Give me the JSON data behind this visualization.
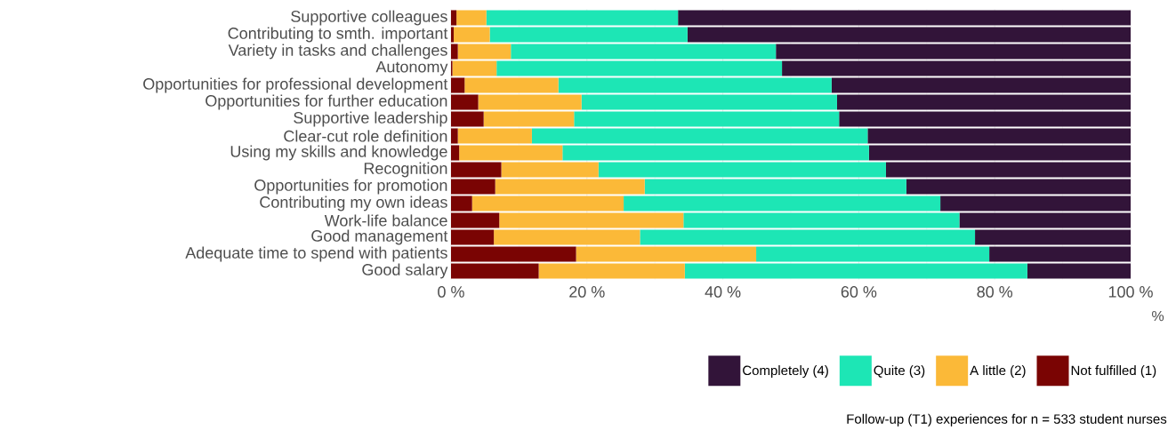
{
  "chart_data": {
    "type": "bar",
    "orientation": "horizontal",
    "stacked": true,
    "categories": [
      "Supportive colleagues",
      "Contributing to smth. important",
      "Variety in tasks and challenges",
      "Autonomy",
      "Opportunities for professional development",
      "Opportunities for further education",
      "Supportive leadership",
      "Clear-cut role definition",
      "Using my skills and knowledge",
      "Recognition",
      "Opportunities for promotion",
      "Contributing my own ideas",
      "Work-life balance",
      "Good management",
      "Adequate time to spend with patients",
      "Good salary"
    ],
    "series": [
      {
        "name": "Not fulfilled (1)",
        "color": "#7a0403",
        "values": [
          0.8,
          0.4,
          1.0,
          0.2,
          2.0,
          4.0,
          4.8,
          1.0,
          1.2,
          7.4,
          6.5,
          3.1,
          7.1,
          6.3,
          18.4,
          12.9
        ]
      },
      {
        "name": "A little (2)",
        "color": "#fbb938",
        "values": [
          4.4,
          5.3,
          7.8,
          6.5,
          13.8,
          15.2,
          13.3,
          10.9,
          15.2,
          14.3,
          22.0,
          22.3,
          27.1,
          21.5,
          26.5,
          21.5
        ]
      },
      {
        "name": "Quite (3)",
        "color": "#1de6b5",
        "values": [
          28.2,
          29.1,
          39.0,
          42.0,
          40.2,
          37.6,
          39.0,
          49.4,
          45.1,
          42.3,
          38.5,
          46.6,
          40.6,
          49.3,
          34.3,
          50.4
        ]
      },
      {
        "name": "Completely (4)",
        "color": "#321439",
        "values": [
          66.6,
          65.2,
          52.2,
          51.3,
          44.0,
          43.2,
          42.9,
          38.7,
          38.5,
          36.0,
          33.0,
          28.0,
          25.2,
          22.9,
          20.8,
          15.2
        ]
      }
    ],
    "xlabel": "%",
    "xlim": [
      0,
      100
    ],
    "xticks": [
      {
        "value": 0,
        "label": "0 %"
      },
      {
        "value": 20,
        "label": "20 %"
      },
      {
        "value": 40,
        "label": "40 %"
      },
      {
        "value": 60,
        "label": "60 %"
      },
      {
        "value": 80,
        "label": "80 %"
      },
      {
        "value": 100,
        "label": "100 %"
      }
    ],
    "grid": true,
    "legend": "bottom right",
    "annotations": [
      "Follow-up (T1) experiences for n =  533  student nurses"
    ]
  }
}
